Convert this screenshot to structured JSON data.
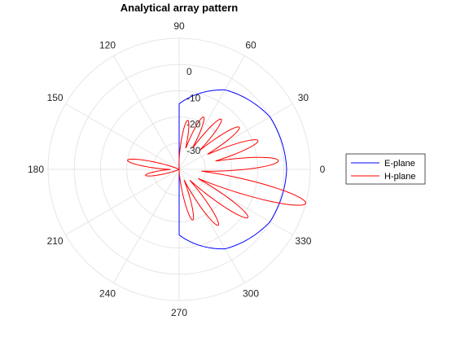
{
  "chart_data": {
    "type": "polar-line",
    "title": "Analytical array pattern",
    "theta_unit": "degrees",
    "theta_ticks": [
      0,
      30,
      60,
      90,
      120,
      150,
      180,
      210,
      240,
      270,
      300,
      330
    ],
    "theta_tick_labels": [
      "0",
      "30",
      "60",
      "90",
      "120",
      "150",
      "180",
      "210",
      "240",
      "270",
      "300",
      "330"
    ],
    "r_ticks": [
      -30,
      -20,
      -10,
      0
    ],
    "r_tick_labels": [
      "-30",
      "-20",
      "-10",
      "0"
    ],
    "r_range": [
      -40,
      10
    ],
    "grid": true,
    "legend_position": "right",
    "series": [
      {
        "name": "E-plane",
        "color": "#0000ff",
        "description_points": [
          {
            "theta": 90,
            "r": -15
          },
          {
            "theta": 60,
            "r": -5
          },
          {
            "theta": 30,
            "r": 0
          },
          {
            "theta": 0,
            "r": 1
          },
          {
            "theta": -30,
            "r": 0
          },
          {
            "theta": -60,
            "r": -5
          },
          {
            "theta": -90,
            "r": -15
          }
        ]
      },
      {
        "name": "H-plane",
        "color": "#ff0000",
        "lobes": [
          {
            "theta": -15,
            "r": 10
          },
          {
            "theta": 5,
            "r": -2
          },
          {
            "theta": 20,
            "r": -8
          },
          {
            "theta": 35,
            "r": -12
          },
          {
            "theta": 50,
            "r": -15
          },
          {
            "theta": 65,
            "r": -18
          },
          {
            "theta": 80,
            "r": -21
          },
          {
            "theta": -35,
            "r": -8
          },
          {
            "theta": -55,
            "r": -14
          },
          {
            "theta": -75,
            "r": -20
          },
          {
            "theta": 170,
            "r": -20
          },
          {
            "theta": 190,
            "r": -27
          }
        ],
        "null_level": -40
      }
    ]
  }
}
